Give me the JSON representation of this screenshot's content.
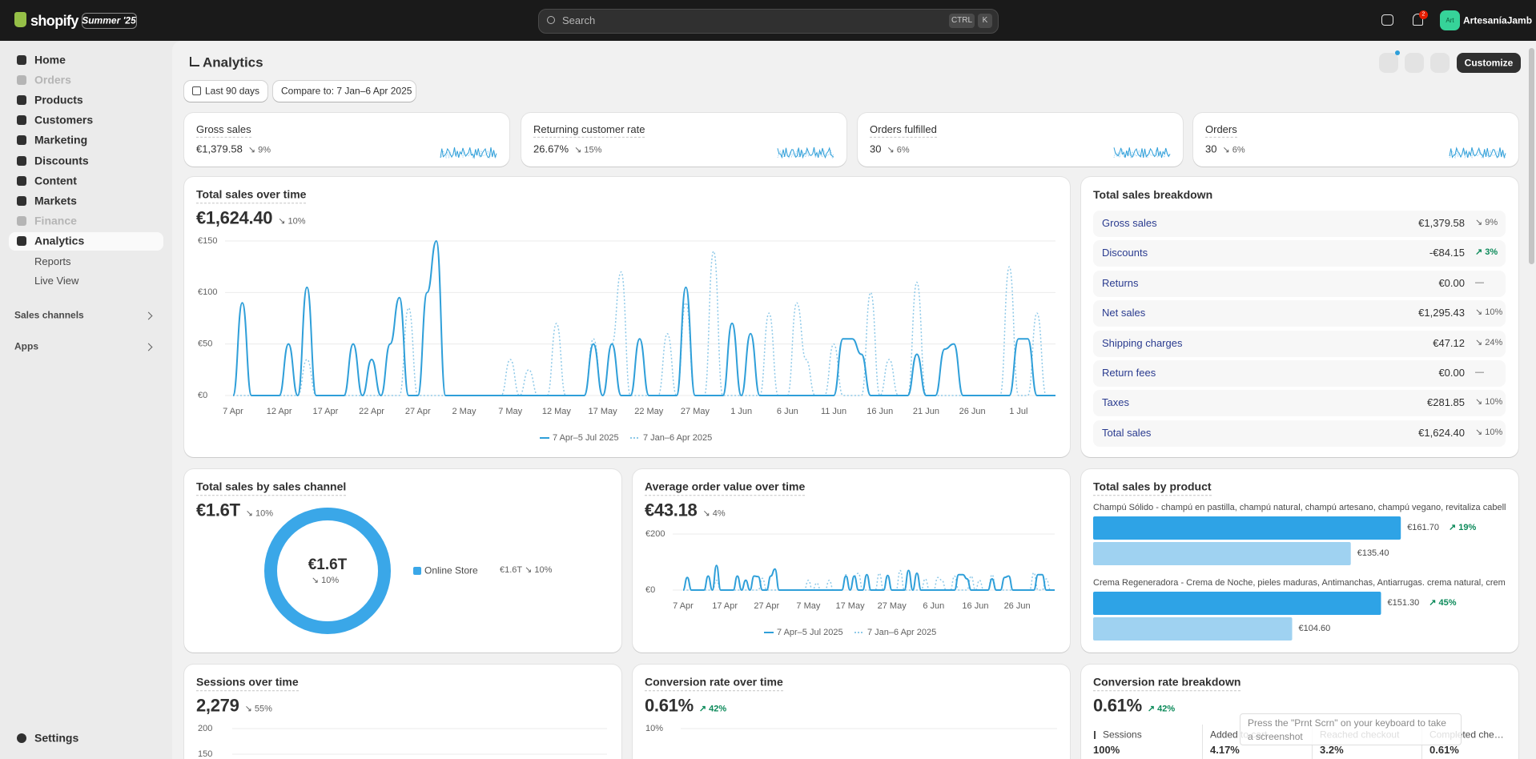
{
  "topbar": {
    "brand": "shopify",
    "badge": "Summer '25",
    "search": "Search",
    "shortcut": [
      "CTRL",
      "K"
    ],
    "notification_count": "2",
    "avatar": "Art",
    "store": "ArtesaníaJamb"
  },
  "sidebar": {
    "nav": [
      {
        "label": "Home",
        "disabled": false
      },
      {
        "label": "Orders",
        "disabled": true
      },
      {
        "label": "Products",
        "disabled": false
      },
      {
        "label": "Customers",
        "disabled": false
      },
      {
        "label": "Marketing",
        "disabled": false
      },
      {
        "label": "Discounts",
        "disabled": false
      },
      {
        "label": "Content",
        "disabled": false
      },
      {
        "label": "Markets",
        "disabled": false
      },
      {
        "label": "Finance",
        "disabled": true
      },
      {
        "label": "Analytics",
        "disabled": false,
        "selected": true
      }
    ],
    "subnav": [
      "Reports",
      "Live View"
    ],
    "sections": [
      "Sales channels",
      "Apps"
    ],
    "settings": "Settings"
  },
  "page": {
    "title": "Analytics",
    "date_range": "Last 90 days",
    "compare": "Compare to: 7 Jan–6 Apr 2025",
    "customize": "Customize"
  },
  "kpis": [
    {
      "label": "Gross sales",
      "value": "€1,379.58",
      "change": "9%",
      "direction": "down"
    },
    {
      "label": "Returning customer rate",
      "value": "26.67%",
      "change": "15%",
      "direction": "down"
    },
    {
      "label": "Orders fulfilled",
      "value": "30",
      "change": "6%",
      "direction": "down"
    },
    {
      "label": "Orders",
      "value": "30",
      "change": "6%",
      "direction": "down"
    }
  ],
  "sales_over_time": {
    "type": "line",
    "title": "Total sales over time",
    "total": "€1,624.40",
    "change": "10%",
    "direction": "down",
    "categories": [
      "7 Apr",
      null,
      null,
      null,
      null,
      "12 Apr",
      null,
      null,
      null,
      null,
      "17 Apr",
      null,
      null,
      null,
      null,
      "22 Apr",
      null,
      null,
      null,
      null,
      "27 Apr",
      null,
      null,
      null,
      null,
      "2 May",
      null,
      null,
      null,
      null,
      "7 May",
      null,
      null,
      null,
      null,
      "12 May",
      null,
      null,
      null,
      null,
      "17 May",
      null,
      null,
      null,
      null,
      "22 May",
      null,
      null,
      null,
      null,
      "27 May",
      null,
      null,
      null,
      null,
      "1 Jun",
      null,
      null,
      null,
      null,
      "6 Jun",
      null,
      null,
      null,
      null,
      "11 Jun",
      null,
      null,
      null,
      null,
      "16 Jun",
      null,
      null,
      null,
      null,
      "21 Jun",
      null,
      null,
      null,
      null,
      "26 Jun",
      null,
      null,
      null,
      null,
      "1 Jul",
      null,
      null,
      null,
      null
    ],
    "series": [
      {
        "name": "7 Apr–5 Jul 2025",
        "color": "#2f9fd9",
        "style": "solid",
        "values": [
          0,
          90,
          0,
          0,
          0,
          0,
          50,
          0,
          105,
          0,
          0,
          0,
          0,
          50,
          0,
          35,
          0,
          50,
          95,
          0,
          0,
          100,
          150,
          0,
          0,
          0,
          0,
          0,
          0,
          0,
          0,
          0,
          0,
          0,
          0,
          0,
          0,
          0,
          0,
          50,
          0,
          50,
          0,
          0,
          55,
          0,
          0,
          0,
          0,
          105,
          0,
          0,
          0,
          0,
          70,
          0,
          60,
          0,
          0,
          0,
          0,
          0,
          0,
          0,
          0,
          0,
          55,
          55,
          40,
          0,
          0,
          0,
          0,
          0,
          40,
          0,
          0,
          45,
          50,
          0,
          0,
          0,
          0,
          0,
          0,
          55,
          55,
          0,
          0,
          0
        ]
      },
      {
        "name": "7 Jan–6 Apr 2025",
        "color": "#8ec9e8",
        "style": "dotted",
        "values": [
          0,
          0,
          0,
          0,
          0,
          0,
          0,
          0,
          35,
          0,
          0,
          0,
          0,
          0,
          0,
          0,
          0,
          0,
          0,
          85,
          0,
          0,
          0,
          0,
          0,
          0,
          0,
          0,
          0,
          0,
          35,
          0,
          25,
          0,
          0,
          70,
          0,
          0,
          0,
          55,
          0,
          50,
          120,
          0,
          0,
          0,
          0,
          60,
          0,
          90,
          0,
          0,
          140,
          0,
          0,
          0,
          0,
          0,
          80,
          0,
          0,
          90,
          35,
          0,
          0,
          50,
          0,
          0,
          0,
          100,
          0,
          35,
          0,
          0,
          110,
          0,
          0,
          0,
          0,
          0,
          0,
          0,
          0,
          0,
          125,
          0,
          0,
          80,
          0,
          0
        ]
      }
    ],
    "ylim": [
      0,
      150
    ],
    "yticks": [
      {
        "value": 0,
        "label": "€0"
      },
      {
        "value": 50,
        "label": "€50"
      },
      {
        "value": 100,
        "label": "€100"
      },
      {
        "value": 150,
        "label": "€150"
      }
    ],
    "grid": true
  },
  "breakdown": {
    "title": "Total sales breakdown",
    "rows": [
      {
        "label": "Gross sales",
        "value": "€1,379.58",
        "change": "9%",
        "direction": "down"
      },
      {
        "label": "Discounts",
        "value": "-€84.15",
        "change": "3%",
        "direction": "up"
      },
      {
        "label": "Returns",
        "value": "€0.00",
        "change": "—",
        "direction": "none"
      },
      {
        "label": "Net sales",
        "value": "€1,295.43",
        "change": "10%",
        "direction": "down"
      },
      {
        "label": "Shipping charges",
        "value": "€47.12",
        "change": "24%",
        "direction": "down"
      },
      {
        "label": "Return fees",
        "value": "€0.00",
        "change": "—",
        "direction": "none"
      },
      {
        "label": "Taxes",
        "value": "€281.85",
        "change": "10%",
        "direction": "down"
      },
      {
        "label": "Total sales",
        "value": "€1,624.40",
        "change": "10%",
        "direction": "down"
      }
    ]
  },
  "sales_by_channel": {
    "title": "Total sales by sales channel",
    "total": "€1.6T",
    "change": "10%",
    "direction": "down",
    "channels": [
      {
        "name": "Online Store",
        "value": "€1.6T",
        "change": "10%",
        "direction": "down",
        "color": "#3aa7e8"
      }
    ]
  },
  "aov": {
    "type": "line",
    "title": "Average order value over time",
    "total": "€43.18",
    "change": "4%",
    "direction": "down",
    "categories": [
      "7 Apr",
      null,
      null,
      null,
      null,
      null,
      null,
      null,
      null,
      null,
      "17 Apr",
      null,
      null,
      null,
      null,
      null,
      null,
      null,
      null,
      null,
      "27 Apr",
      null,
      null,
      null,
      null,
      null,
      null,
      null,
      null,
      null,
      "7 May",
      null,
      null,
      null,
      null,
      null,
      null,
      null,
      null,
      null,
      "17 May",
      null,
      null,
      null,
      null,
      null,
      null,
      null,
      null,
      null,
      "27 May",
      null,
      null,
      null,
      null,
      null,
      null,
      null,
      null,
      null,
      "6 Jun",
      null,
      null,
      null,
      null,
      null,
      null,
      null,
      null,
      null,
      "16 Jun",
      null,
      null,
      null,
      null,
      null,
      null,
      null,
      null,
      null,
      "26 Jun",
      null,
      null,
      null,
      null,
      null,
      null,
      null,
      null,
      null
    ],
    "series": [
      {
        "name": "7 Apr–5 Jul 2025",
        "color": "#2f9fd9",
        "style": "solid",
        "values": [
          0,
          45,
          0,
          0,
          0,
          0,
          50,
          0,
          88,
          0,
          0,
          0,
          0,
          50,
          0,
          35,
          0,
          50,
          48,
          0,
          0,
          50,
          75,
          0,
          0,
          0,
          0,
          0,
          0,
          0,
          0,
          0,
          0,
          0,
          0,
          0,
          0,
          0,
          0,
          50,
          0,
          50,
          0,
          0,
          55,
          0,
          0,
          0,
          0,
          52,
          0,
          0,
          0,
          0,
          70,
          0,
          60,
          0,
          0,
          0,
          0,
          0,
          0,
          0,
          0,
          0,
          55,
          55,
          40,
          0,
          0,
          0,
          0,
          0,
          40,
          0,
          0,
          45,
          50,
          0,
          0,
          0,
          0,
          0,
          0,
          55,
          55,
          0,
          0,
          0
        ]
      },
      {
        "name": "7 Jan–6 Apr 2025",
        "color": "#8ec9e8",
        "style": "dotted",
        "values": [
          0,
          0,
          0,
          0,
          0,
          0,
          0,
          0,
          35,
          0,
          0,
          0,
          0,
          0,
          0,
          0,
          0,
          0,
          0,
          42,
          0,
          0,
          0,
          0,
          0,
          0,
          0,
          0,
          0,
          0,
          35,
          0,
          25,
          0,
          0,
          35,
          0,
          0,
          0,
          55,
          0,
          50,
          60,
          0,
          0,
          0,
          0,
          60,
          0,
          45,
          0,
          0,
          70,
          0,
          0,
          0,
          0,
          0,
          40,
          0,
          0,
          45,
          35,
          0,
          0,
          50,
          0,
          0,
          0,
          50,
          0,
          35,
          0,
          0,
          55,
          0,
          0,
          0,
          0,
          0,
          0,
          0,
          0,
          0,
          62,
          0,
          0,
          40,
          0,
          0
        ]
      }
    ],
    "ylim": [
      0,
      200
    ],
    "yticks": [
      {
        "value": 0,
        "label": "€0"
      },
      {
        "value": 200,
        "label": "€200"
      }
    ],
    "grid": true
  },
  "products": {
    "type": "bar",
    "title": "Total sales by product",
    "colors": [
      "#2ea3e6",
      "#9fd2f1"
    ],
    "items": [
      {
        "name": "Champú Sólido - champú en pastilla, champú natural, champú artesano, champú vegano, revitaliza cabellos...",
        "values": [
          161.7,
          135.4
        ],
        "value_labels": [
          "€161.70",
          "€135.40"
        ],
        "change": "19%",
        "direction": "up"
      },
      {
        "name": "Crema Regeneradora - Crema de Noche, pieles maduras, Antimanchas, Antiarrugas. crema natural, crema f...",
        "values": [
          151.3,
          104.6
        ],
        "value_labels": [
          "€151.30",
          "€104.60"
        ],
        "change": "45%",
        "direction": "up"
      }
    ]
  },
  "sessions": {
    "title": "Sessions over time",
    "total": "2,279",
    "change": "55%",
    "direction": "down",
    "ylim": [
      0,
      200
    ],
    "yticks": [
      200,
      150
    ],
    "grid": true
  },
  "conversion_over_time": {
    "title": "Conversion rate over time",
    "total": "0.61%",
    "change": "42%",
    "direction": "up",
    "ylim": [
      0,
      10
    ],
    "yticks": [
      {
        "value": 10,
        "label": "10%"
      }
    ],
    "grid": true
  },
  "conversion_breakdown": {
    "title": "Conversion rate breakdown",
    "total": "0.61%",
    "change": "42%",
    "direction": "up",
    "steps": [
      {
        "label": "Sessions",
        "value": "100%"
      },
      {
        "label": "Added to cart",
        "value": "4.17%"
      },
      {
        "label": "Reached checkout",
        "value": "3.2%"
      },
      {
        "label": "Completed che…",
        "value": "0.61%"
      }
    ]
  },
  "toast": "Press the \"Prnt Scrn\" on your keyboard to take a screenshot"
}
